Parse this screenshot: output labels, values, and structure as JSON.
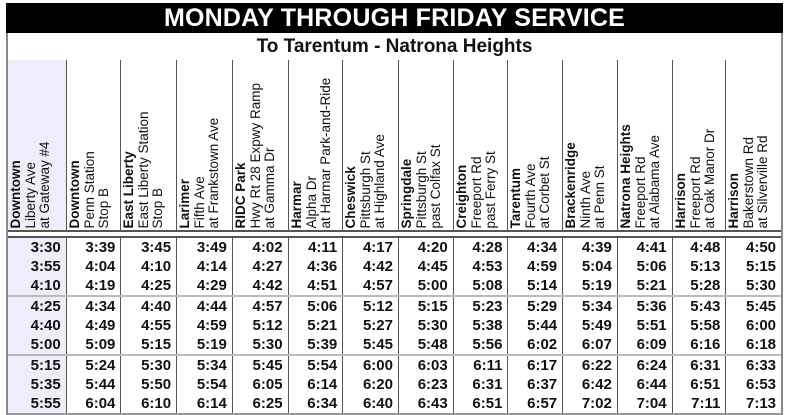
{
  "title": "MONDAY THROUGH FRIDAY SERVICE",
  "subtitle": "To Tarentum - Natrona Heights",
  "colors": {
    "banner_bg": "#000000",
    "first_column_bg": "#f1ecfb"
  },
  "columns": [
    {
      "place": "Downtown",
      "line2": "Liberty Ave",
      "line3": "at Gateway #4"
    },
    {
      "place": "Downtown",
      "line2": "Penn Station",
      "line3": "Stop B"
    },
    {
      "place": "East Liberty",
      "line2": "East Liberty Station",
      "line3": "Stop B"
    },
    {
      "place": "Larimer",
      "line2": "Fifth Ave",
      "line3": "at Frankstown Ave"
    },
    {
      "place": "RIDC Park",
      "line2": "Hwy Rt 28 Expwy Ramp",
      "line3": "at Gamma Dr"
    },
    {
      "place": "Harmar",
      "line2": "Alpha Dr",
      "line3": "at Harmar Park-and-Ride"
    },
    {
      "place": "Cheswick",
      "line2": "Pittsburgh St",
      "line3": "at Highland Ave"
    },
    {
      "place": "Springdale",
      "line2": "Pittsburgh St",
      "line3": "past Colfax St"
    },
    {
      "place": "Creighton",
      "line2": "Freeport Rd",
      "line3": "past Ferry St"
    },
    {
      "place": "Tarentum",
      "line2": "Fourth Ave",
      "line3": "at Corbet St"
    },
    {
      "place": "Brackenridge",
      "line2": "Ninth Ave",
      "line3": "at Penn St"
    },
    {
      "place": "Natrona Heights",
      "line2": "Freeport Rd",
      "line3": "at Alabama Ave"
    },
    {
      "place": "Harrison",
      "line2": "Freeport Rd",
      "line3": "at Oak Manor Dr"
    },
    {
      "place": "Harrison",
      "line2": "Bakerstown Rd",
      "line3": "at Silverville Rd"
    }
  ],
  "rows": [
    [
      "3:30",
      "3:39",
      "3:45",
      "3:49",
      "4:02",
      "4:11",
      "4:17",
      "4:20",
      "4:28",
      "4:34",
      "4:39",
      "4:41",
      "4:48",
      "4:50"
    ],
    [
      "3:55",
      "4:04",
      "4:10",
      "4:14",
      "4:27",
      "4:36",
      "4:42",
      "4:45",
      "4:53",
      "4:59",
      "5:04",
      "5:06",
      "5:13",
      "5:15"
    ],
    [
      "4:10",
      "4:19",
      "4:25",
      "4:29",
      "4:42",
      "4:51",
      "4:57",
      "5:00",
      "5:08",
      "5:14",
      "5:19",
      "5:21",
      "5:28",
      "5:30"
    ],
    [
      "4:25",
      "4:34",
      "4:40",
      "4:44",
      "4:57",
      "5:06",
      "5:12",
      "5:15",
      "5:23",
      "5:29",
      "5:34",
      "5:36",
      "5:43",
      "5:45"
    ],
    [
      "4:40",
      "4:49",
      "4:55",
      "4:59",
      "5:12",
      "5:21",
      "5:27",
      "5:30",
      "5:38",
      "5:44",
      "5:49",
      "5:51",
      "5:58",
      "6:00"
    ],
    [
      "5:00",
      "5:09",
      "5:15",
      "5:19",
      "5:30",
      "5:39",
      "5:45",
      "5:48",
      "5:56",
      "6:02",
      "6:07",
      "6:09",
      "6:16",
      "6:18"
    ],
    [
      "5:15",
      "5:24",
      "5:30",
      "5:34",
      "5:45",
      "5:54",
      "6:00",
      "6:03",
      "6:11",
      "6:17",
      "6:22",
      "6:24",
      "6:31",
      "6:33"
    ],
    [
      "5:35",
      "5:44",
      "5:50",
      "5:54",
      "6:05",
      "6:14",
      "6:20",
      "6:23",
      "6:31",
      "6:37",
      "6:42",
      "6:44",
      "6:51",
      "6:53"
    ],
    [
      "5:55",
      "6:04",
      "6:10",
      "6:14",
      "6:25",
      "6:34",
      "6:40",
      "6:43",
      "6:51",
      "6:57",
      "7:02",
      "7:04",
      "7:11",
      "7:13"
    ]
  ]
}
